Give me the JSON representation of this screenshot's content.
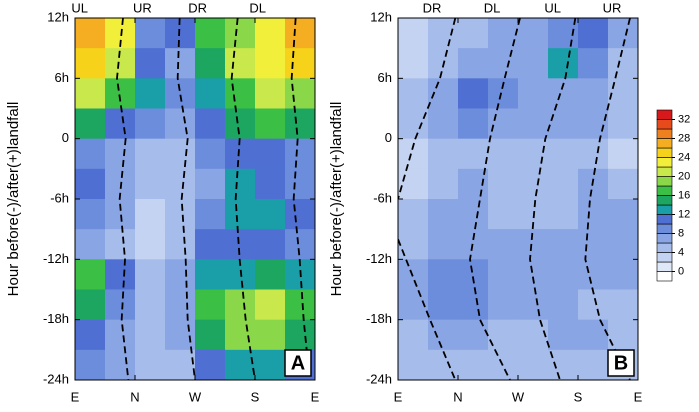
{
  "chart_data": [
    {
      "type": "contour",
      "label": "A",
      "ylabel": "Hour before(-)/after(+)landfall",
      "xlim": [
        0,
        360
      ],
      "ylim": [
        -24,
        12
      ],
      "xticks": [
        {
          "value": 0,
          "label": "E"
        },
        {
          "value": 90,
          "label": "N"
        },
        {
          "value": 180,
          "label": "W"
        },
        {
          "value": 270,
          "label": "S"
        },
        {
          "value": 360,
          "label": "E"
        }
      ],
      "yticks": [
        {
          "value": -24,
          "label": "-24h"
        },
        {
          "value": -18,
          "label": "-18h"
        },
        {
          "value": -12,
          "label": "-12h"
        },
        {
          "value": -6,
          "label": "-6h"
        },
        0,
        {
          "value": 6,
          "label": "6h"
        },
        {
          "value": 12,
          "label": "12h"
        }
      ],
      "top_labels": [
        {
          "value": 7,
          "label": "UL"
        },
        {
          "value": 101,
          "label": "UR"
        },
        {
          "value": 184,
          "label": "DR"
        },
        {
          "value": 274,
          "label": "DL"
        }
      ],
      "x": [
        22.5,
        67.5,
        112.5,
        157.5,
        202.5,
        247.5,
        292.5,
        337.5
      ],
      "y": [
        10.5,
        7.5,
        4.5,
        1.5,
        -1.5,
        -4.5,
        -7.5,
        -10.5,
        -13.5,
        -16.5,
        -19.5,
        -22.5
      ],
      "z": [
        [
          26,
          22,
          8,
          10,
          16,
          18,
          22,
          26
        ],
        [
          24,
          20,
          10,
          6,
          14,
          20,
          22,
          24
        ],
        [
          20,
          16,
          12,
          8,
          12,
          16,
          20,
          18
        ],
        [
          14,
          10,
          8,
          6,
          10,
          14,
          16,
          14
        ],
        [
          8,
          6,
          4,
          4,
          8,
          10,
          10,
          8
        ],
        [
          10,
          6,
          4,
          4,
          6,
          12,
          10,
          8
        ],
        [
          8,
          6,
          2,
          4,
          8,
          12,
          12,
          10
        ],
        [
          6,
          4,
          2,
          4,
          10,
          10,
          10,
          8
        ],
        [
          16,
          10,
          4,
          6,
          12,
          12,
          14,
          12
        ],
        [
          14,
          8,
          4,
          6,
          16,
          18,
          20,
          16
        ],
        [
          10,
          6,
          4,
          6,
          14,
          18,
          18,
          14
        ],
        [
          8,
          6,
          4,
          4,
          10,
          12,
          12,
          10
        ]
      ],
      "lines": [
        {
          "y": [
            12,
            6,
            0,
            -6,
            -12,
            -18,
            -24
          ],
          "x": [
            72,
            63,
            76,
            67,
            75,
            70,
            80
          ]
        },
        {
          "y": [
            12,
            6,
            0,
            -6,
            -12,
            -18,
            -24
          ],
          "x": [
            157,
            154,
            169,
            160,
            166,
            169,
            180
          ]
        },
        {
          "y": [
            12,
            6,
            0,
            -6,
            -12,
            -18,
            -24
          ],
          "x": [
            244,
            235,
            247,
            241,
            247,
            256,
            270
          ]
        },
        {
          "y": [
            12,
            6,
            0,
            -6,
            -12,
            -18,
            -24
          ],
          "x": [
            331,
            325,
            334,
            328,
            337,
            343,
            352
          ]
        }
      ]
    },
    {
      "type": "contour",
      "label": "B",
      "ylabel": "Hour before(-)/after(+)landfall",
      "xlim": [
        0,
        360
      ],
      "ylim": [
        -24,
        12
      ],
      "xticks": [
        {
          "value": 0,
          "label": "E"
        },
        {
          "value": 90,
          "label": "N"
        },
        {
          "value": 180,
          "label": "W"
        },
        {
          "value": 270,
          "label": "S"
        },
        {
          "value": 360,
          "label": "E"
        }
      ],
      "yticks": [
        {
          "value": -24,
          "label": "-24h"
        },
        {
          "value": -18,
          "label": "-18h"
        },
        {
          "value": -12,
          "label": "-12h"
        },
        {
          "value": -6,
          "label": "-6h"
        },
        0,
        {
          "value": 6,
          "label": "6h"
        },
        {
          "value": 12,
          "label": "12h"
        }
      ],
      "top_labels": [
        {
          "value": 51,
          "label": "DR"
        },
        {
          "value": 141,
          "label": "DL"
        },
        {
          "value": 232,
          "label": "UL"
        },
        {
          "value": 321,
          "label": "UR"
        }
      ],
      "x": [
        22.5,
        67.5,
        112.5,
        157.5,
        202.5,
        247.5,
        292.5,
        337.5
      ],
      "y": [
        10.5,
        7.5,
        4.5,
        1.5,
        -1.5,
        -4.5,
        -7.5,
        -10.5,
        -13.5,
        -16.5,
        -19.5,
        -22.5
      ],
      "z": [
        [
          2,
          4,
          4,
          6,
          6,
          8,
          10,
          6
        ],
        [
          2,
          4,
          6,
          6,
          6,
          12,
          8,
          4
        ],
        [
          4,
          6,
          10,
          8,
          6,
          6,
          6,
          4
        ],
        [
          4,
          6,
          8,
          6,
          6,
          6,
          6,
          4
        ],
        [
          2,
          4,
          4,
          4,
          4,
          4,
          4,
          2
        ],
        [
          2,
          4,
          6,
          4,
          4,
          4,
          6,
          4
        ],
        [
          4,
          6,
          6,
          4,
          4,
          4,
          6,
          6
        ],
        [
          4,
          6,
          6,
          6,
          6,
          6,
          6,
          6
        ],
        [
          6,
          8,
          8,
          6,
          6,
          6,
          6,
          6
        ],
        [
          6,
          8,
          8,
          6,
          6,
          6,
          4,
          4
        ],
        [
          4,
          6,
          6,
          4,
          4,
          6,
          6,
          4
        ],
        [
          4,
          4,
          4,
          4,
          4,
          4,
          4,
          4
        ]
      ],
      "lines": [
        {
          "y": [
            12,
            6,
            0,
            -6
          ],
          "x": [
            86,
            63,
            26,
            0
          ]
        },
        {
          "y": [
            -10,
            -18,
            -24
          ],
          "x": [
            0,
            48,
            86
          ]
        },
        {
          "y": [
            12,
            6,
            0,
            -6,
            -12,
            -18,
            -24
          ],
          "x": [
            183,
            160,
            138,
            123,
            108,
            123,
            168
          ]
        },
        {
          "y": [
            12,
            6,
            0,
            -6,
            -12,
            -18,
            -24
          ],
          "x": [
            266,
            251,
            221,
            206,
            198,
            213,
            243
          ]
        },
        {
          "y": [
            12,
            6,
            0,
            -6,
            -12,
            -18,
            -24
          ],
          "x": [
            348,
            326,
            303,
            288,
            281,
            303,
            348
          ]
        }
      ]
    }
  ],
  "colorbar": {
    "levels": [
      0,
      2,
      4,
      6,
      8,
      10,
      12,
      14,
      16,
      18,
      20,
      22,
      24,
      26,
      28,
      30,
      32
    ],
    "ticks": [
      0,
      4,
      8,
      12,
      16,
      20,
      24,
      28,
      32
    ],
    "colors": [
      "#ffffff",
      "#dfe8f7",
      "#c3d3f1",
      "#a6bdeb",
      "#8aa5e4",
      "#6c8cdc",
      "#4f70d2",
      "#1a9ea8",
      "#1ca65f",
      "#3cbf45",
      "#8ad84a",
      "#c9e84b",
      "#f2ef3a",
      "#f7d21a",
      "#f5ae22",
      "#ef8020",
      "#e84b1b",
      "#d7191c"
    ]
  }
}
